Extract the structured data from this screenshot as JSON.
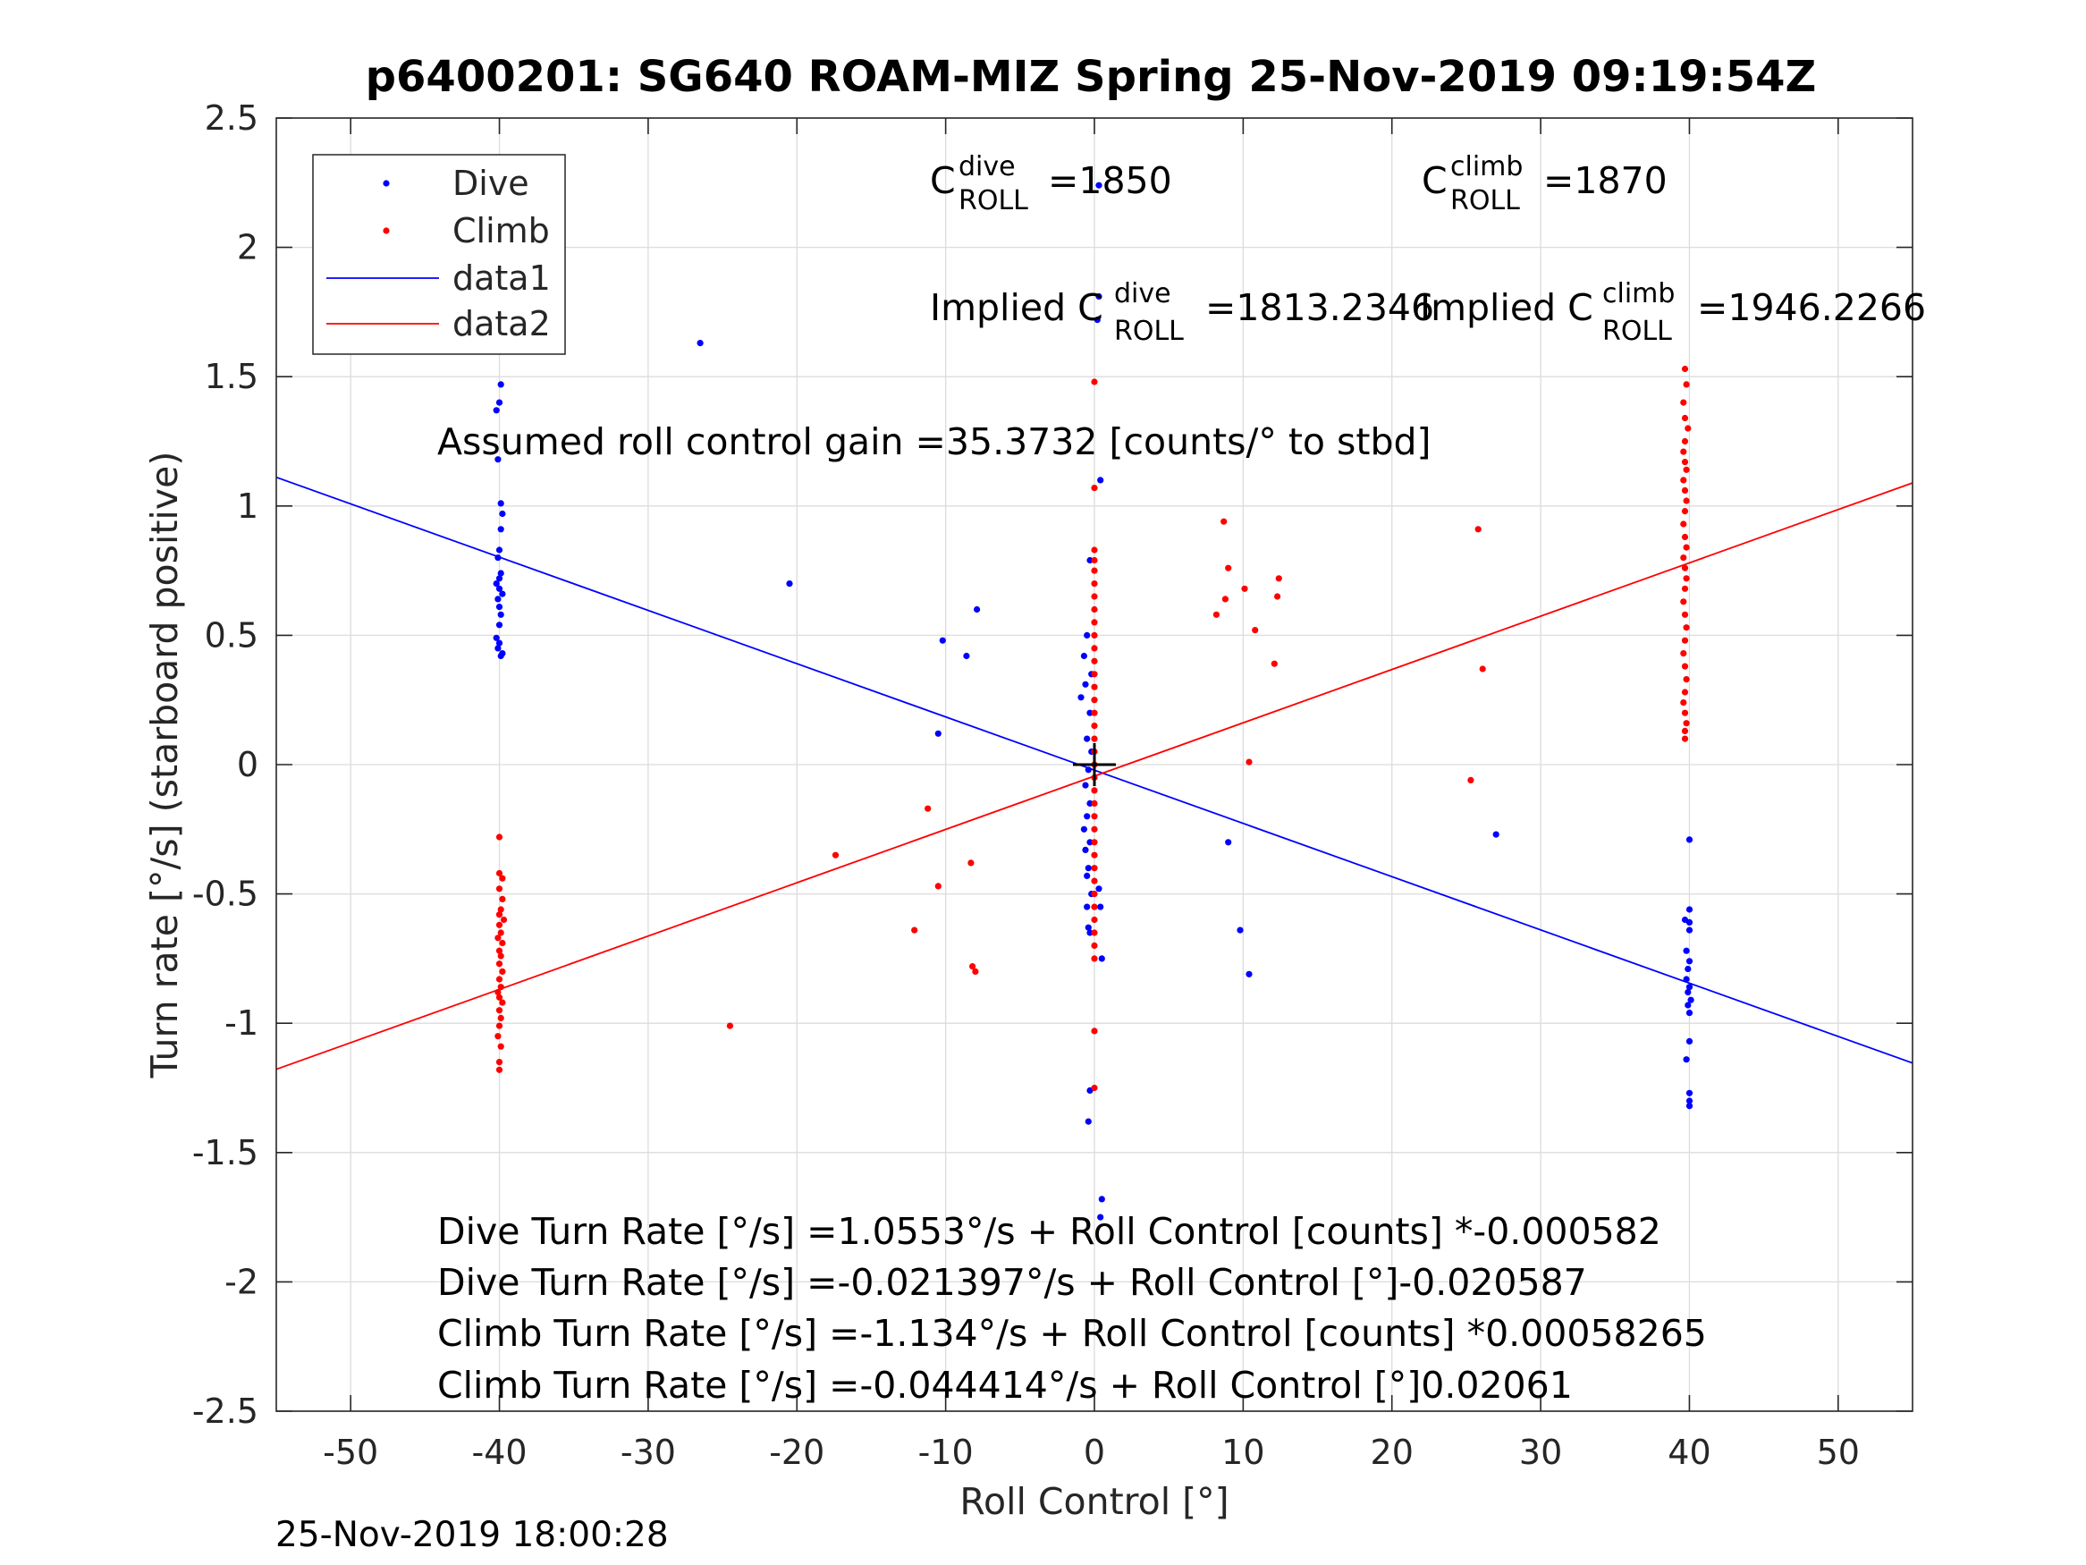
{
  "chart_data": {
    "type": "scatter",
    "title": "p6400201: SG640 ROAM-MIZ Spring 25-Nov-2019 09:19:54Z",
    "xlabel": "Roll Control [°]",
    "ylabel": "Turn rate [°/s] (starboard positive)",
    "xlim": [
      -55,
      55
    ],
    "ylim": [
      -2.5,
      2.5
    ],
    "xticks": [
      -50,
      -40,
      -30,
      -20,
      -10,
      0,
      10,
      20,
      30,
      40,
      50
    ],
    "yticks": [
      -2.5,
      -2,
      -1.5,
      -1,
      -0.5,
      0,
      0.5,
      1,
      1.5,
      2,
      2.5
    ],
    "xtick_labels": [
      "-50",
      "-40",
      "-30",
      "-20",
      "-10",
      "0",
      "10",
      "20",
      "30",
      "40",
      "50"
    ],
    "ytick_labels": [
      "-2.5",
      "-2",
      "-1.5",
      "-1",
      "-0.5",
      "0",
      "0.5",
      "1",
      "1.5",
      "2",
      "2.5"
    ],
    "grid": true,
    "legend_position": "top-left",
    "legend": [
      "Dive",
      "Climb",
      "data1",
      "data2"
    ],
    "series": [
      {
        "name": "Dive",
        "kind": "points",
        "color": "#0000ff",
        "points": [
          [
            -39.9,
            1.47
          ],
          [
            -40,
            1.4
          ],
          [
            -40.2,
            1.37
          ],
          [
            -40.1,
            1.18
          ],
          [
            -39.9,
            1.01
          ],
          [
            -39.8,
            0.97
          ],
          [
            -39.9,
            0.91
          ],
          [
            -40,
            0.83
          ],
          [
            -40.1,
            0.8
          ],
          [
            -39.9,
            0.74
          ],
          [
            -40,
            0.72
          ],
          [
            -40.2,
            0.7
          ],
          [
            -40,
            0.68
          ],
          [
            -39.8,
            0.66
          ],
          [
            -40.1,
            0.64
          ],
          [
            -40,
            0.61
          ],
          [
            -39.9,
            0.58
          ],
          [
            -40,
            0.54
          ],
          [
            -40.2,
            0.49
          ],
          [
            -40,
            0.47
          ],
          [
            -40.1,
            0.45
          ],
          [
            -39.8,
            0.43
          ],
          [
            -39.9,
            0.42
          ],
          [
            -40.3,
            1.73
          ],
          [
            -26.5,
            1.63
          ],
          [
            -20.5,
            0.7
          ],
          [
            -7.9,
            0.6
          ],
          [
            -10.2,
            0.48
          ],
          [
            -8.6,
            0.42
          ],
          [
            -10.5,
            0.12
          ],
          [
            0.3,
            2.24
          ],
          [
            0.3,
            1.81
          ],
          [
            0.2,
            1.72
          ],
          [
            0.4,
            1.1
          ],
          [
            -0.3,
            0.79
          ],
          [
            -0.5,
            0.5
          ],
          [
            -0.7,
            0.42
          ],
          [
            -0.2,
            0.35
          ],
          [
            -0.6,
            0.31
          ],
          [
            -0.9,
            0.26
          ],
          [
            -0.3,
            0.2
          ],
          [
            -0.5,
            0.1
          ],
          [
            -0.2,
            0.05
          ],
          [
            -0.4,
            -0.02
          ],
          [
            -0.6,
            -0.08
          ],
          [
            -0.3,
            -0.15
          ],
          [
            -0.5,
            -0.2
          ],
          [
            -0.7,
            -0.25
          ],
          [
            -0.3,
            -0.3
          ],
          [
            -0.6,
            -0.33
          ],
          [
            -0.4,
            -0.4
          ],
          [
            -0.5,
            -0.43
          ],
          [
            -0.2,
            -0.5
          ],
          [
            0.3,
            -0.48
          ],
          [
            0.4,
            -0.55
          ],
          [
            -0.5,
            -0.55
          ],
          [
            -0.4,
            -0.63
          ],
          [
            -0.3,
            -0.65
          ],
          [
            0.5,
            -0.75
          ],
          [
            -0.3,
            -1.26
          ],
          [
            -0.4,
            -1.38
          ],
          [
            0.5,
            -1.68
          ],
          [
            0.4,
            -1.75
          ],
          [
            9,
            -0.3
          ],
          [
            9.8,
            -0.64
          ],
          [
            10.4,
            -0.81
          ],
          [
            27,
            -0.27
          ],
          [
            40,
            -0.29
          ],
          [
            40,
            -0.56
          ],
          [
            39.7,
            -0.6
          ],
          [
            40,
            -0.61
          ],
          [
            40,
            -0.64
          ],
          [
            39.8,
            -0.72
          ],
          [
            40,
            -0.76
          ],
          [
            39.9,
            -0.79
          ],
          [
            39.8,
            -0.83
          ],
          [
            40,
            -0.86
          ],
          [
            39.9,
            -0.88
          ],
          [
            40.1,
            -0.91
          ],
          [
            39.9,
            -0.93
          ],
          [
            40,
            -0.96
          ],
          [
            40,
            -1.07
          ],
          [
            39.8,
            -1.14
          ],
          [
            40,
            -1.27
          ],
          [
            40,
            -1.3
          ],
          [
            40,
            -1.32
          ]
        ]
      },
      {
        "name": "Climb",
        "kind": "points",
        "color": "#ff0000",
        "points": [
          [
            -40,
            -0.28
          ],
          [
            -40,
            -0.42
          ],
          [
            -39.8,
            -0.44
          ],
          [
            -40,
            -0.48
          ],
          [
            -39.8,
            -0.52
          ],
          [
            -39.9,
            -0.56
          ],
          [
            -40,
            -0.58
          ],
          [
            -39.7,
            -0.6
          ],
          [
            -40,
            -0.62
          ],
          [
            -39.9,
            -0.65
          ],
          [
            -40.1,
            -0.67
          ],
          [
            -39.8,
            -0.69
          ],
          [
            -40,
            -0.72
          ],
          [
            -39.9,
            -0.74
          ],
          [
            -40,
            -0.77
          ],
          [
            -39.8,
            -0.8
          ],
          [
            -40,
            -0.83
          ],
          [
            -39.9,
            -0.86
          ],
          [
            -40.1,
            -0.88
          ],
          [
            -40,
            -0.9
          ],
          [
            -39.8,
            -0.92
          ],
          [
            -40,
            -0.95
          ],
          [
            -39.9,
            -0.98
          ],
          [
            -40,
            -1.01
          ],
          [
            -40.1,
            -1.05
          ],
          [
            -39.9,
            -1.09
          ],
          [
            -40,
            -1.15
          ],
          [
            -40,
            -1.18
          ],
          [
            -24.5,
            -1.01
          ],
          [
            -17.4,
            -0.35
          ],
          [
            -11.2,
            -0.17
          ],
          [
            -12.1,
            -0.64
          ],
          [
            -10.5,
            -0.47
          ],
          [
            -8.3,
            -0.38
          ],
          [
            -8.2,
            -0.78
          ],
          [
            -8,
            -0.8
          ],
          [
            0,
            1.48
          ],
          [
            0,
            1.07
          ],
          [
            0,
            0.83
          ],
          [
            0,
            0.79
          ],
          [
            0,
            0.75
          ],
          [
            0,
            0.7
          ],
          [
            0,
            0.65
          ],
          [
            0,
            0.6
          ],
          [
            0,
            0.55
          ],
          [
            0,
            0.5
          ],
          [
            0,
            0.45
          ],
          [
            0,
            0.4
          ],
          [
            0,
            0.35
          ],
          [
            0,
            0.3
          ],
          [
            0,
            0.25
          ],
          [
            0,
            0.2
          ],
          [
            0,
            0.15
          ],
          [
            0,
            0.1
          ],
          [
            0,
            0.05
          ],
          [
            0,
            0
          ],
          [
            0,
            -0.05
          ],
          [
            0,
            -0.1
          ],
          [
            0,
            -0.15
          ],
          [
            0,
            -0.2
          ],
          [
            0,
            -0.25
          ],
          [
            0,
            -0.3
          ],
          [
            0,
            -0.35
          ],
          [
            0,
            -0.4
          ],
          [
            0,
            -0.45
          ],
          [
            0,
            -0.5
          ],
          [
            0,
            -0.55
          ],
          [
            0,
            -0.6
          ],
          [
            0,
            -0.65
          ],
          [
            0,
            -0.7
          ],
          [
            0,
            -0.75
          ],
          [
            0,
            -1.03
          ],
          [
            0,
            -1.25
          ],
          [
            8.7,
            0.94
          ],
          [
            9,
            0.76
          ],
          [
            8.8,
            0.64
          ],
          [
            8.2,
            0.58
          ],
          [
            10.1,
            0.68
          ],
          [
            10.8,
            0.52
          ],
          [
            12.4,
            0.72
          ],
          [
            12.3,
            0.65
          ],
          [
            12.1,
            0.39
          ],
          [
            10.4,
            0.01
          ],
          [
            25.8,
            0.91
          ],
          [
            26.1,
            0.37
          ],
          [
            25.3,
            -0.06
          ],
          [
            39.7,
            1.53
          ],
          [
            39.8,
            1.47
          ],
          [
            39.6,
            1.4
          ],
          [
            39.7,
            1.34
          ],
          [
            39.9,
            1.3
          ],
          [
            39.7,
            1.25
          ],
          [
            39.6,
            1.21
          ],
          [
            39.7,
            1.17
          ],
          [
            39.8,
            1.14
          ],
          [
            39.6,
            1.1
          ],
          [
            39.7,
            1.06
          ],
          [
            39.8,
            1.02
          ],
          [
            39.7,
            0.98
          ],
          [
            39.6,
            0.93
          ],
          [
            39.7,
            0.88
          ],
          [
            39.8,
            0.84
          ],
          [
            39.6,
            0.8
          ],
          [
            39.7,
            0.76
          ],
          [
            39.8,
            0.72
          ],
          [
            39.7,
            0.68
          ],
          [
            39.6,
            0.63
          ],
          [
            39.7,
            0.58
          ],
          [
            39.8,
            0.53
          ],
          [
            39.7,
            0.48
          ],
          [
            39.6,
            0.43
          ],
          [
            39.7,
            0.38
          ],
          [
            39.8,
            0.33
          ],
          [
            39.7,
            0.28
          ],
          [
            39.6,
            0.24
          ],
          [
            39.7,
            0.2
          ],
          [
            39.8,
            0.16
          ],
          [
            39.7,
            0.13
          ],
          [
            39.7,
            0.1
          ]
        ]
      },
      {
        "name": "data1",
        "kind": "line",
        "color": "#0000ff",
        "points": [
          [
            -55,
            1.1111
          ],
          [
            55,
            -1.1539
          ]
        ]
      },
      {
        "name": "data2",
        "kind": "line",
        "color": "#ff0000",
        "points": [
          [
            -55,
            -1.178
          ],
          [
            55,
            1.0892
          ]
        ]
      }
    ],
    "marker": {
      "x": 0,
      "y": 0,
      "symbol": "+",
      "color": "#000000"
    }
  },
  "annotations": {
    "c_dive": {
      "base": "C",
      "sup": "dive",
      "sub": "ROLL",
      "value": "=1850"
    },
    "c_climb": {
      "base": "C",
      "sup": "climb",
      "sub": "ROLL",
      "value": "=1870"
    },
    "implied_dive": {
      "prefix": "Implied C",
      "sup": "dive",
      "sub": "ROLL",
      "value": "=1813.2346"
    },
    "implied_climb": {
      "prefix": "Implied C",
      "sup": "climb",
      "sub": "ROLL",
      "value": "=1946.2266"
    },
    "gain": "Assumed roll control gain =35.3732 [counts/° to stbd]",
    "fit_lines": [
      "Dive Turn Rate [°/s] =1.0553°/s + Roll Control [counts] *-0.000582",
      "Dive Turn Rate [°/s] =-0.021397°/s + Roll Control [°]-0.020587",
      "Climb Turn Rate [°/s] =-1.134°/s + Roll Control [counts] *0.00058265",
      "Climb Turn Rate [°/s] =-0.044414°/s + Roll Control [°]0.02061"
    ]
  },
  "timestamp": "25-Nov-2019 18:00:28"
}
